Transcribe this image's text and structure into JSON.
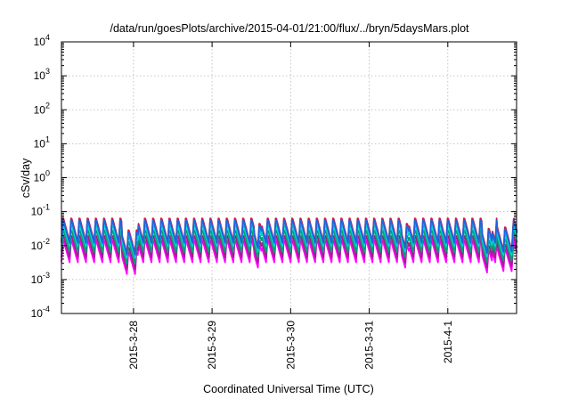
{
  "chart_data": {
    "type": "line",
    "title": "/data/run/goesPlots/archive/2015-04-01/21:00/flux/../bryn/5daysMars.plot",
    "xlabel": "Coordinated Universal Time (UTC)",
    "ylabel": "cSv/day",
    "yscale": "log",
    "ylim": [
      0.0001,
      10000
    ],
    "y_ticks": [
      {
        "value": 0.0001,
        "base": "10",
        "exp": "-4"
      },
      {
        "value": 0.001,
        "base": "10",
        "exp": "-3"
      },
      {
        "value": 0.01,
        "base": "10",
        "exp": "-2"
      },
      {
        "value": 0.1,
        "base": "10",
        "exp": "-1"
      },
      {
        "value": 1,
        "base": "10",
        "exp": "0"
      },
      {
        "value": 10,
        "base": "10",
        "exp": "1"
      },
      {
        "value": 100,
        "base": "10",
        "exp": "2"
      },
      {
        "value": 1000,
        "base": "10",
        "exp": "3"
      },
      {
        "value": 10000,
        "base": "10",
        "exp": "4"
      }
    ],
    "x_tick_labels": [
      "2015-3-28",
      "2015-3-29",
      "2015-3-30",
      "2015-3-31",
      "2015-4-1"
    ],
    "xlim": [
      "2015-03-27 02:00",
      "2015-04-01 21:00"
    ],
    "x_ticks": [
      "2015-03-28 00:00",
      "2015-03-29 00:00",
      "2015-03-30 00:00",
      "2015-03-31 00:00",
      "2015-04-01 00:00"
    ],
    "grid": true,
    "legend": "none",
    "series": [
      {
        "color": "#ff00ff",
        "peak": 0.016,
        "trough": 0.0032
      },
      {
        "color": "#a0208c",
        "peak": 0.022,
        "trough": 0.0045
      },
      {
        "color": "#00a078",
        "peak": 0.032,
        "trough": 0.0065
      },
      {
        "color": "#00d2d2",
        "peak": 0.045,
        "trough": 0.0095
      },
      {
        "color": "#dc143c",
        "peak": 0.072,
        "trough": 0.013
      },
      {
        "color": "#1e64dc",
        "peak": 0.062,
        "trough": 0.012
      }
    ]
  }
}
